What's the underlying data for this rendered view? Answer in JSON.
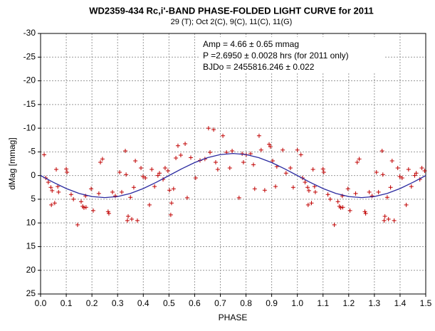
{
  "chart_data": {
    "type": "scatter",
    "title": "WD2359-434  Rc,i'-BAND  PHASE-FOLDED  LIGHT CURVE  for 2011",
    "subtitle": "29 (T); Oct 2(C), 9(C), 11(C), 11(G)",
    "annotations": [
      "Amp = 4.66 ± 0.65 mmag",
      "P =2.6950 ± 0.0028 hrs (for 2011 only)",
      "BJDo = 2455816.246  ± 0.022"
    ],
    "x_label": "PHASE",
    "y_label": "dMag [mmag]",
    "xlim": [
      0,
      1.5
    ],
    "ylim": [
      -30,
      25
    ],
    "xticks": [
      {
        "value": 0,
        "label": "0.0"
      },
      0.1,
      0.2,
      0.3,
      0.4,
      0.5,
      0.6,
      0.7,
      0.8,
      0.9,
      {
        "value": 1,
        "label": "1.0"
      },
      1.1,
      1.2,
      1.3,
      1.4,
      1.5
    ],
    "yticks": [
      -30,
      -25,
      -20,
      -15,
      -10,
      -5,
      0,
      5,
      10,
      15,
      20,
      25
    ],
    "grid": true,
    "points": {
      "color": "#c00000",
      "x": [
        0.014,
        0.02,
        0.03,
        0.04,
        0.045,
        0.042,
        0.055,
        0.061,
        0.067,
        0.07,
        0.1,
        0.103,
        0.119,
        0.128,
        0.144,
        0.158,
        0.164,
        0.169,
        0.175,
        0.177,
        0.197,
        0.205,
        0.227,
        0.233,
        0.241,
        0.263,
        0.266,
        0.28,
        0.291,
        0.308,
        0.316,
        0.33,
        0.333,
        0.338,
        0.341,
        0.35,
        0.355,
        0.363,
        0.369,
        0.377,
        0.391,
        0.399,
        0.408,
        0.424,
        0.433,
        0.444,
        0.457,
        0.463,
        0.477,
        0.485,
        0.496,
        0.502,
        0.507,
        0.51,
        0.518,
        0.527,
        0.535,
        0.546,
        0.563,
        0.571,
        0.585,
        0.604,
        0.621,
        0.64,
        0.654,
        0.66,
        0.674,
        0.682,
        0.69,
        0.71,
        0.724,
        0.737,
        0.746,
        0.773,
        0.785,
        0.79,
        0.801,
        0.818,
        0.829,
        0.834,
        0.851,
        0.859,
        0.873,
        0.89,
        0.895,
        0.904,
        0.915,
        0.92,
        0.943,
        0.956,
        0.973,
        0.984,
        1.0,
        1.014,
        1.02,
        1.03,
        1.04,
        1.045,
        1.042,
        1.055,
        1.061,
        1.067,
        1.07,
        1.1,
        1.103,
        1.119,
        1.128,
        1.144,
        1.158,
        1.164,
        1.169,
        1.175,
        1.177,
        1.197,
        1.205,
        1.227,
        1.233,
        1.241,
        1.263,
        1.266,
        1.28,
        1.291,
        1.308,
        1.316,
        1.33,
        1.333,
        1.338,
        1.341,
        1.35,
        1.355,
        1.363,
        1.369,
        1.377,
        1.391,
        1.399,
        1.408,
        1.424,
        1.433,
        1.444,
        1.457,
        1.463,
        1.477,
        1.485,
        1.496
      ],
      "values": [
        -4.4,
        0.5,
        1.4,
        2.5,
        3.2,
        6.2,
        5.8,
        -1.3,
        2.3,
        3.5,
        -1.4,
        -0.7,
        4,
        5,
        10.4,
        5.5,
        6.5,
        6.8,
        4.3,
        6.7,
        2.8,
        7.4,
        3.8,
        -2.8,
        -3.5,
        7.6,
        8,
        3.5,
        4.3,
        -0.7,
        3.5,
        -5.2,
        -0.2,
        9.5,
        8.6,
        4.6,
        9.2,
        2.5,
        -3.1,
        9.5,
        -1.6,
        0.2,
        0.5,
        6.2,
        -1.3,
        2.3,
        0,
        -0.5,
        0.8,
        -1.6,
        -1,
        3.1,
        8.3,
        5.8,
        2.8,
        -3.7,
        -6.3,
        -4.3,
        -6.7,
        4.7,
        -3.8,
        0.5,
        -3.2,
        -3.5,
        -10,
        -4.9,
        -9.7,
        -2.8,
        -1.3,
        -8.4,
        -4.9,
        -1.6,
        -5.2,
        4.7,
        -4.6,
        -2.8,
        -4.4,
        -4.6,
        -2.3,
        2.8,
        -8.4,
        -5.4,
        3.1,
        -6.6,
        -6.1,
        -3.1,
        2.3,
        -1.9,
        -5.4,
        -0.5,
        -1.6,
        2.5,
        -5.4,
        -4.4,
        0.5,
        1.4,
        2.5,
        3.2,
        6.2,
        5.8,
        -1.3,
        2.3,
        3.5,
        -1.4,
        -0.7,
        4,
        5,
        10.4,
        5.5,
        6.5,
        6.8,
        4.3,
        6.7,
        2.8,
        7.4,
        3.8,
        -2.8,
        -3.5,
        7.6,
        8,
        3.5,
        4.3,
        -0.7,
        3.5,
        -5.2,
        -0.2,
        9.5,
        8.6,
        4.6,
        9.2,
        2.5,
        -3.1,
        9.5,
        -1.6,
        0.2,
        0.5,
        6.2,
        -1.3,
        2.3,
        0,
        -0.5,
        0.8,
        -1.6,
        -1
      ]
    },
    "fit": {
      "color": "#2a2aa0",
      "x": [
        0,
        0.05,
        0.1,
        0.15,
        0.2,
        0.25,
        0.3,
        0.35,
        0.4,
        0.45,
        0.5,
        0.55,
        0.6,
        0.65,
        0.7,
        0.75,
        0.8,
        0.85,
        0.9,
        0.95,
        1.0,
        1.05,
        1.1,
        1.15,
        1.2,
        1.25,
        1.3,
        1.35,
        1.4,
        1.45,
        1.5
      ],
      "values": [
        0,
        1.44,
        2.74,
        3.77,
        4.43,
        4.66,
        4.43,
        3.77,
        2.74,
        1.44,
        0,
        -1.44,
        -2.74,
        -3.77,
        -4.43,
        -4.66,
        -4.43,
        -3.77,
        -2.74,
        -1.44,
        0,
        1.44,
        2.74,
        3.77,
        4.43,
        4.66,
        4.43,
        3.77,
        2.74,
        1.44,
        0
      ]
    }
  }
}
